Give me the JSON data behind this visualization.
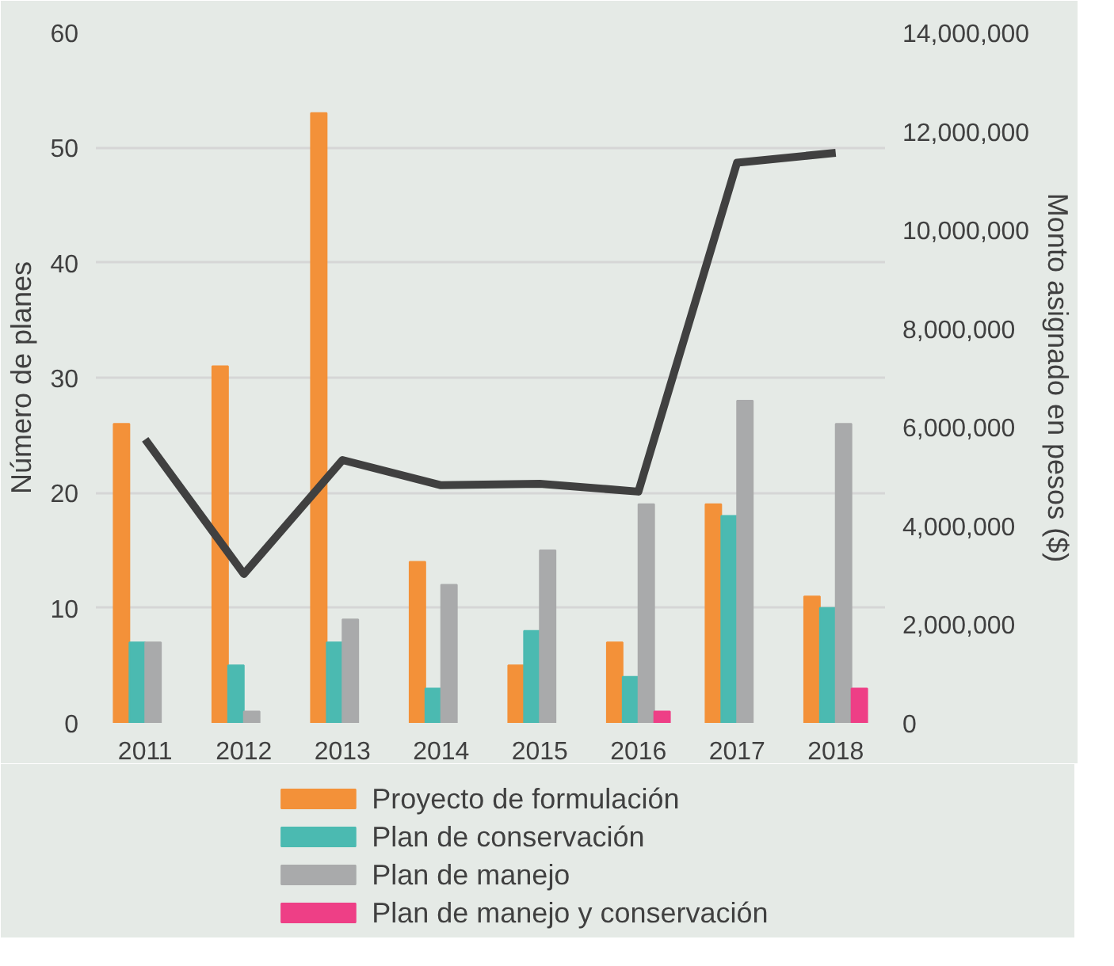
{
  "chart_data": {
    "type": "bar",
    "ylabel": "Número de planes",
    "y2label": "Monto asignado en pesos ($)",
    "categories": [
      "2011",
      "2012",
      "2013",
      "2014",
      "2015",
      "2016",
      "2017",
      "2018"
    ],
    "series": [
      {
        "name": "Proyecto de formulación",
        "color": "#f39139",
        "values": [
          26,
          31,
          53,
          14,
          5,
          7,
          19,
          11
        ]
      },
      {
        "name": "Plan de conservación",
        "color": "#4bbab1",
        "values": [
          7,
          5,
          7,
          3,
          8,
          4,
          18,
          10
        ]
      },
      {
        "name": "Plan de manejo",
        "color": "#a9aaab",
        "values": [
          7,
          1,
          9,
          12,
          15,
          19,
          28,
          26
        ]
      },
      {
        "name": "Plan de manejo y conservación",
        "color": "#ee3f86",
        "values": [
          null,
          null,
          null,
          null,
          null,
          1,
          null,
          3
        ]
      },
      {
        "type": "line",
        "axis": "y2",
        "color": "#404040",
        "values": [
          5750000,
          3020000,
          5330000,
          4820000,
          4850000,
          4690000,
          11360000,
          11560000
        ]
      }
    ],
    "ylim": [
      0,
      60
    ],
    "yticks": [
      0,
      10,
      20,
      30,
      40,
      50,
      60
    ],
    "y2lim": [
      0,
      14000000
    ],
    "y2ticks": [
      {
        "value": 0,
        "label": "0"
      },
      {
        "value": 2000000,
        "label": "2,000,000"
      },
      {
        "value": 4000000,
        "label": "4,000,000"
      },
      {
        "value": 6000000,
        "label": "6,000,000"
      },
      {
        "value": 8000000,
        "label": "8,000,000"
      },
      {
        "value": 10000000,
        "label": "10,000,000"
      },
      {
        "value": 12000000,
        "label": "12,000,000"
      },
      {
        "value": 14000000,
        "label": "14,000,000"
      }
    ],
    "grid": "y",
    "legend": "bottom",
    "marker": "none",
    "line_style": "solid"
  }
}
